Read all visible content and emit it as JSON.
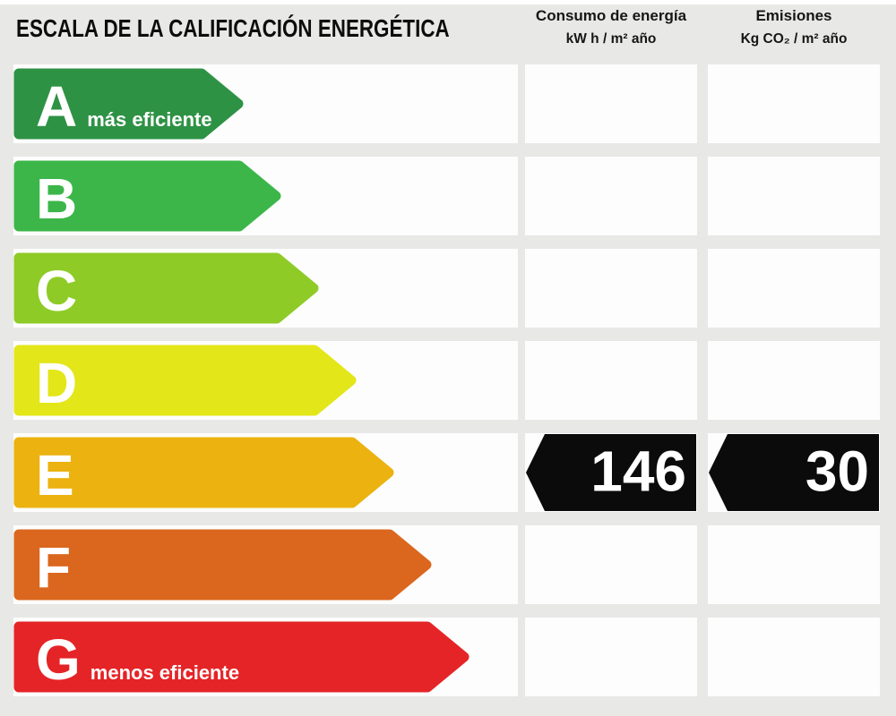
{
  "title": "ESCALA DE LA CALIFICACIÓN ENERGÉTICA",
  "columns": {
    "consumo": {
      "title": "Consumo de energía",
      "unit": "kW h / m² año"
    },
    "emisiones": {
      "title": "Emisiones",
      "unit": "Kg CO₂ / m² año"
    }
  },
  "scale": {
    "most_efficient_label": "más eficiente",
    "least_efficient_label": "menos eficiente",
    "rows": [
      {
        "letter": "A",
        "label": "más eficiente",
        "color": "#2e9245",
        "arrow_width": 258,
        "consumo": "",
        "emisiones": ""
      },
      {
        "letter": "B",
        "label": "",
        "color": "#3cb649",
        "arrow_width": 300,
        "consumo": "",
        "emisiones": ""
      },
      {
        "letter": "C",
        "label": "",
        "color": "#8ecb27",
        "arrow_width": 342,
        "consumo": "",
        "emisiones": ""
      },
      {
        "letter": "D",
        "label": "",
        "color": "#e3e618",
        "arrow_width": 384,
        "consumo": "",
        "emisiones": ""
      },
      {
        "letter": "E",
        "label": "",
        "color": "#ebb210",
        "arrow_width": 426,
        "consumo": "146",
        "emisiones": "30"
      },
      {
        "letter": "F",
        "label": "",
        "color": "#db671e",
        "arrow_width": 468,
        "consumo": "",
        "emisiones": ""
      },
      {
        "letter": "G",
        "label": "menos eficiente",
        "color": "#e52427",
        "arrow_width": 510,
        "consumo": "",
        "emisiones": ""
      }
    ]
  },
  "values": {
    "rating": "E",
    "consumo": "146",
    "emisiones": "30"
  },
  "colors": {
    "background": "#e8e8e6",
    "cell": "#fdfdfd",
    "value_arrow": "#0b0b0b",
    "text": "#0d0d0d",
    "arrow_text": "#ffffff"
  },
  "chart_data": {
    "type": "table",
    "title": "ESCALA DE LA CALIFICACIÓN ENERGÉTICA",
    "categories": [
      "A",
      "B",
      "C",
      "D",
      "E",
      "F",
      "G"
    ],
    "series": [
      {
        "name": "Consumo de energía (kW h / m² año)",
        "values": [
          null,
          null,
          null,
          null,
          146,
          null,
          null
        ]
      },
      {
        "name": "Emisiones (Kg CO₂ / m² año)",
        "values": [
          null,
          null,
          null,
          null,
          30,
          null,
          null
        ]
      }
    ],
    "rating": "E",
    "annotations": [
      "A = más eficiente",
      "G = menos eficiente",
      "Consumo de energía: 146 kW h / m² año (E)",
      "Emisiones: 30 Kg CO₂ / m² año (E)"
    ],
    "legend_position": "none",
    "grid": false
  }
}
